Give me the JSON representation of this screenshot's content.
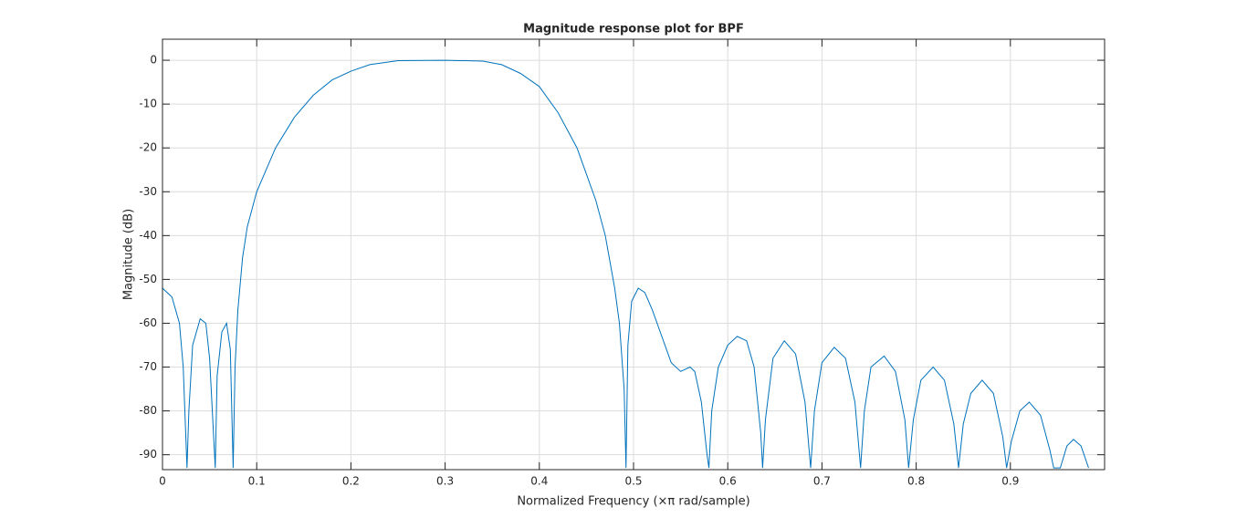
{
  "chart_data": {
    "type": "line",
    "title": "Magnitude response plot for BPF",
    "x_label": "Normalized Frequency (×π rad/sample)",
    "y_label": "Magnitude (dB)",
    "xlim": [
      0,
      1
    ],
    "ylim": [
      -93.4,
      4.8
    ],
    "xticks": [
      0,
      0.1,
      0.2,
      0.3,
      0.4,
      0.5,
      0.6,
      0.7,
      0.8,
      0.9
    ],
    "yticks": [
      -90,
      -80,
      -70,
      -60,
      -50,
      -40,
      -30,
      -20,
      -10,
      0
    ],
    "grid": true,
    "series": [
      {
        "color": "#0072bd",
        "x": [
          0,
          0.01,
          0.018,
          0.022,
          0.026,
          0.028,
          0.032,
          0.04,
          0.046,
          0.05,
          0.056,
          0.058,
          0.063,
          0.068,
          0.072,
          0.075,
          0.077,
          0.08,
          0.085,
          0.09,
          0.1,
          0.12,
          0.14,
          0.16,
          0.18,
          0.2,
          0.22,
          0.25,
          0.3,
          0.34,
          0.36,
          0.38,
          0.4,
          0.42,
          0.44,
          0.46,
          0.47,
          0.48,
          0.485,
          0.49,
          0.492,
          0.494,
          0.498,
          0.505,
          0.512,
          0.52,
          0.53,
          0.54,
          0.55,
          0.56,
          0.565,
          0.572,
          0.578,
          0.58,
          0.583,
          0.59,
          0.6,
          0.61,
          0.62,
          0.628,
          0.635,
          0.637,
          0.64,
          0.648,
          0.66,
          0.672,
          0.682,
          0.688,
          0.692,
          0.7,
          0.713,
          0.725,
          0.735,
          0.741,
          0.745,
          0.752,
          0.766,
          0.778,
          0.788,
          0.792,
          0.797,
          0.805,
          0.818,
          0.83,
          0.84,
          0.845,
          0.85,
          0.858,
          0.87,
          0.882,
          0.892,
          0.896,
          0.901,
          0.91,
          0.92,
          0.932,
          0.942,
          0.946,
          0.953,
          0.96,
          0.967,
          0.975,
          0.983
        ],
        "values": [
          -52,
          -54,
          -60,
          -70,
          -93,
          -80,
          -65,
          -59,
          -60,
          -68,
          -93,
          -72,
          -62,
          -60,
          -66,
          -93,
          -70,
          -57,
          -45,
          -38,
          -30,
          -20,
          -13,
          -8,
          -4.5,
          -2.5,
          -1,
          -0.1,
          0,
          -0.2,
          -1,
          -3,
          -6,
          -12,
          -20,
          -32,
          -40,
          -52,
          -60,
          -75,
          -93,
          -65,
          -55,
          -52,
          -53,
          -57,
          -63,
          -69,
          -71,
          -70,
          -71,
          -78,
          -90,
          -93,
          -80,
          -70,
          -65,
          -63,
          -64,
          -70,
          -85,
          -93,
          -82,
          -68,
          -64,
          -67,
          -78,
          -93,
          -80,
          -69,
          -65.5,
          -68,
          -78,
          -93,
          -80,
          -70,
          -67.5,
          -71,
          -82,
          -93,
          -82,
          -73,
          -70,
          -73,
          -83,
          -93,
          -83,
          -76,
          -73,
          -76,
          -86,
          -93,
          -87,
          -80,
          -78,
          -81,
          -89,
          -93,
          -93,
          -88,
          -86.5,
          -88,
          -93
        ]
      }
    ]
  }
}
